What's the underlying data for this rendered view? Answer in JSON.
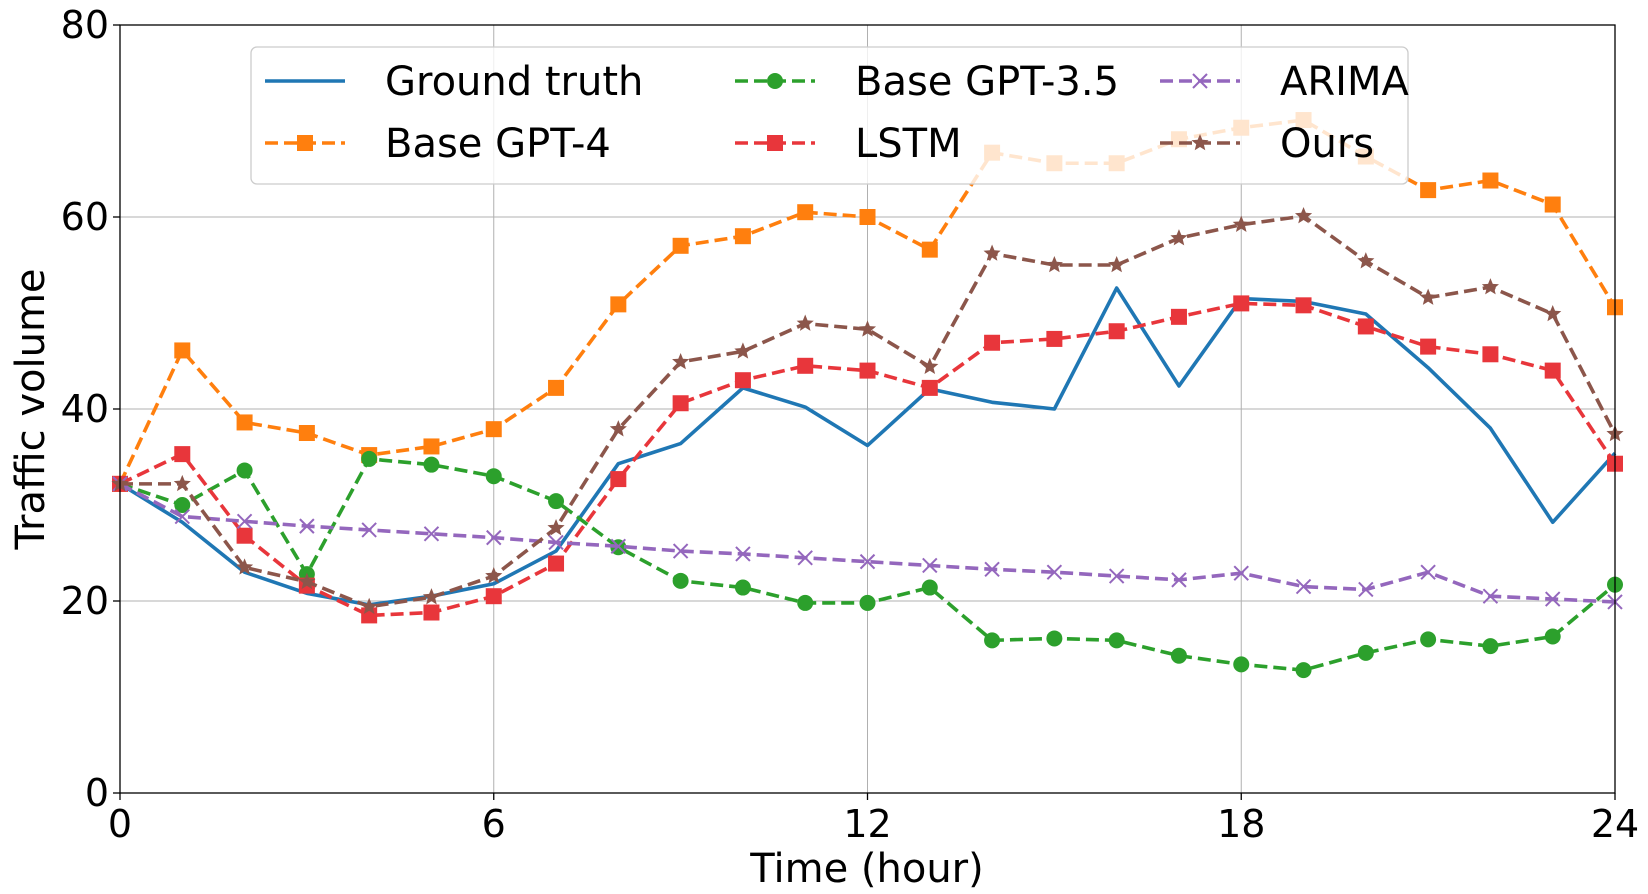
{
  "chart_data": {
    "type": "line",
    "title": "",
    "xlabel": "Time (hour)",
    "ylabel": "Traffic volume",
    "xlim": [
      0,
      24
    ],
    "ylim": [
      0,
      80
    ],
    "xticks": [
      "0",
      "6",
      "12",
      "18",
      "24"
    ],
    "yticks": [
      "0",
      "20",
      "40",
      "60",
      "80"
    ],
    "grid": true,
    "legend_position": "top-center",
    "x": [
      0,
      1,
      2,
      3,
      4,
      5,
      6,
      7,
      8,
      9,
      10,
      11,
      12,
      13,
      14,
      15,
      16,
      17,
      18,
      19,
      20,
      21,
      22,
      23,
      24
    ],
    "series": [
      {
        "name": "Ground truth",
        "color": "#1f77b4",
        "style": "solid",
        "marker": "none",
        "values": [
          32.2,
          28.2,
          23.0,
          20.8,
          19.6,
          20.5,
          21.8,
          25.2,
          34.3,
          36.4,
          42.2,
          40.2,
          36.2,
          42.1,
          40.7,
          40.0,
          52.6,
          42.4,
          51.5,
          51.2,
          49.9,
          44.3,
          38.0,
          28.2,
          35.4
        ]
      },
      {
        "name": "Base GPT-4",
        "color": "#ff7f0e",
        "style": "dashed",
        "marker": "square",
        "values": [
          32.2,
          46.1,
          38.6,
          37.5,
          35.2,
          36.1,
          37.9,
          42.2,
          50.9,
          57.0,
          58.0,
          60.5,
          60.0,
          56.6,
          66.7,
          65.6,
          65.6,
          68.1,
          69.3,
          70.1,
          66.3,
          62.8,
          63.8,
          61.3,
          50.6
        ]
      },
      {
        "name": "Base GPT-3.5",
        "color": "#2ca02c",
        "style": "dashed",
        "marker": "circle",
        "values": [
          32.2,
          30.0,
          33.6,
          22.8,
          34.8,
          34.2,
          33.0,
          30.4,
          25.6,
          22.1,
          21.4,
          19.8,
          19.8,
          21.4,
          15.9,
          16.1,
          15.9,
          14.3,
          13.4,
          12.8,
          14.6,
          16.0,
          15.3,
          16.3,
          21.7
        ]
      },
      {
        "name": "LSTM",
        "color": "#e8363b",
        "style": "dashed",
        "marker": "square",
        "values": [
          32.2,
          35.3,
          26.8,
          21.6,
          18.5,
          18.8,
          20.5,
          23.9,
          32.7,
          40.6,
          43.0,
          44.5,
          44.0,
          42.2,
          46.9,
          47.3,
          48.1,
          49.6,
          51.0,
          50.8,
          48.6,
          46.5,
          45.7,
          44.0,
          34.3
        ]
      },
      {
        "name": "ARIMA",
        "color": "#9467bd",
        "style": "dashed",
        "marker": "x",
        "values": [
          32.2,
          28.8,
          28.3,
          27.8,
          27.4,
          27.0,
          26.6,
          26.1,
          25.7,
          25.2,
          24.9,
          24.5,
          24.1,
          23.7,
          23.3,
          23.0,
          22.6,
          22.2,
          22.9,
          21.5,
          21.2,
          23.0,
          20.5,
          20.2,
          19.9
        ]
      },
      {
        "name": "Ours",
        "color": "#8c564b",
        "style": "dashed",
        "marker": "star",
        "values": [
          32.2,
          32.2,
          23.5,
          22.0,
          19.4,
          20.4,
          22.6,
          27.6,
          37.9,
          44.9,
          46.0,
          48.9,
          48.3,
          44.4,
          56.2,
          55.0,
          55.0,
          57.8,
          59.2,
          60.1,
          55.4,
          51.6,
          52.7,
          49.9,
          37.4
        ]
      }
    ]
  }
}
